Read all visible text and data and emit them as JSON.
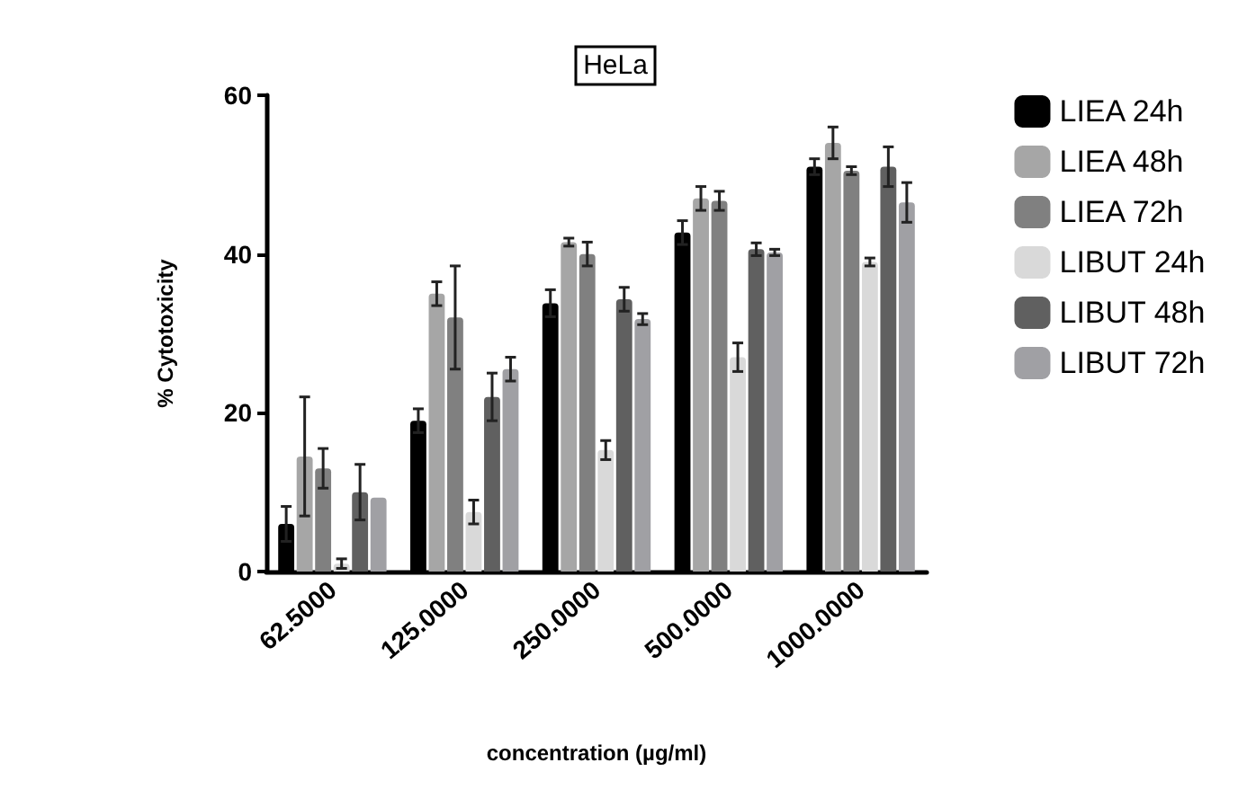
{
  "chart_data": {
    "type": "bar",
    "title": "HeLa",
    "xlabel": "concentration (µg/ml)",
    "ylabel": "% Cytotoxicity",
    "categories": [
      "62.5000",
      "125.0000",
      "250.0000",
      "500.0000",
      "1000.0000"
    ],
    "series": [
      {
        "name": "LIEA 24h",
        "color": "#000000",
        "values": [
          6,
          19,
          33.8,
          42.7,
          51
        ],
        "errors": [
          2.2,
          1.5,
          1.7,
          1.5,
          1
        ]
      },
      {
        "name": "LIEA 48h",
        "color": "#a6a6a6",
        "values": [
          14.5,
          35,
          41.5,
          47,
          54
        ],
        "errors": [
          7.5,
          1.5,
          0.5,
          1.5,
          2
        ]
      },
      {
        "name": "LIEA 72h",
        "color": "#808080",
        "values": [
          13,
          32,
          40,
          46.7,
          50.5
        ],
        "errors": [
          2.5,
          6.5,
          1.5,
          1.2,
          0.5
        ]
      },
      {
        "name": "LIBUT 24h",
        "color": "#d9d9d9",
        "values": [
          1,
          7.5,
          15.3,
          27,
          39
        ],
        "errors": [
          0.6,
          1.5,
          1.2,
          1.8,
          0.5
        ]
      },
      {
        "name": "LIBUT 48h",
        "color": "#606060",
        "values": [
          10,
          22,
          34.3,
          40.6,
          51
        ],
        "errors": [
          3.5,
          3,
          1.5,
          0.8,
          2.5
        ]
      },
      {
        "name": "LIBUT 72h",
        "color": "#a0a0a4",
        "values": [
          9.3,
          25.5,
          31.8,
          40.2,
          46.5
        ],
        "errors": [
          null,
          1.5,
          0.7,
          0.4,
          2.5
        ]
      }
    ],
    "ylim": [
      0,
      60
    ],
    "yticks": [
      0,
      20,
      40,
      60
    ],
    "grid": false,
    "legend": "right"
  }
}
